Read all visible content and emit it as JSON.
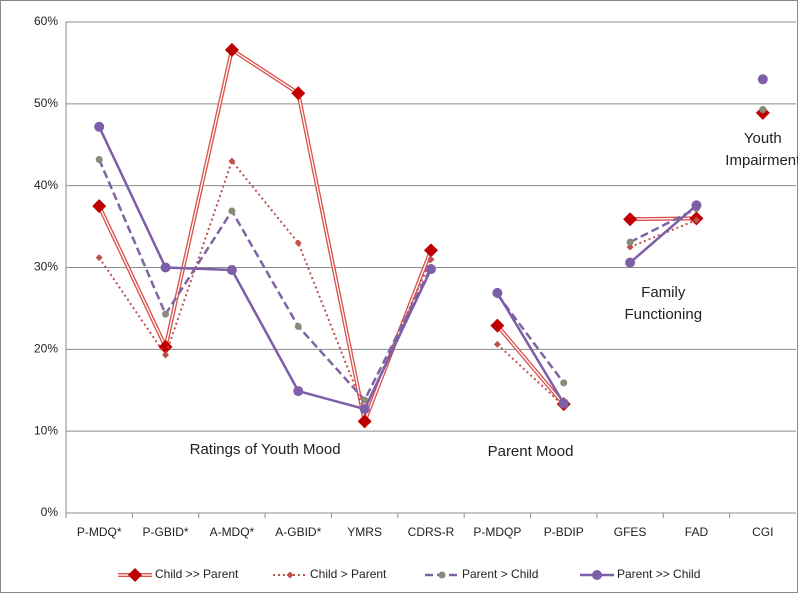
{
  "chart_data": {
    "type": "line",
    "categories": [
      "P-MDQ*",
      "P-GBID*",
      "A-MDQ*",
      "A-GBID*",
      "YMRS",
      "CDRS-R",
      "P-MDQP",
      "P-BDIP",
      "GFES",
      "FAD",
      "CGI"
    ],
    "series": [
      {
        "name": "Child >> Parent",
        "color": "#d9534f",
        "line": "double",
        "marker": "diamond",
        "marker_color": "#c00000",
        "values": [
          37.5,
          20.3,
          56.6,
          51.3,
          11.2,
          32.1,
          22.9,
          13.3,
          35.9,
          36.0,
          48.9
        ]
      },
      {
        "name": "Child > Parent",
        "color": "#c0504d",
        "line": "dotted",
        "marker": "small-diamond",
        "marker_color": "#c0504d",
        "values": [
          31.2,
          19.3,
          43.0,
          33.0,
          12.5,
          31.0,
          20.6,
          13.1,
          32.5,
          35.8,
          49.2
        ]
      },
      {
        "name": "Parent > Child",
        "color": "#8064a2",
        "line": "dashed",
        "marker": "small-circle",
        "marker_color": "#8a8a7a",
        "values": [
          43.2,
          24.3,
          36.9,
          22.8,
          13.8,
          30.0,
          26.7,
          15.9,
          33.1,
          37.2,
          49.3
        ]
      },
      {
        "name": "Parent >> Child",
        "color": "#7d5ea8",
        "line": "solid",
        "marker": "circle",
        "marker_color": "#7d5ea8",
        "values": [
          47.2,
          30.0,
          29.7,
          14.9,
          12.7,
          29.8,
          26.9,
          13.4,
          30.6,
          37.6,
          53.0
        ]
      }
    ],
    "groups": [
      {
        "lines": [
          "Ratings of Youth Mood"
        ],
        "from": 0,
        "to": 5
      },
      {
        "lines": [
          "Parent Mood"
        ],
        "from": 6,
        "to": 7
      },
      {
        "lines": [
          "Family",
          "Functioning"
        ],
        "from": 8,
        "to": 9
      },
      {
        "lines": [
          "Youth",
          "Impairment"
        ],
        "from": 10,
        "to": 10
      }
    ],
    "ylim": [
      0,
      60
    ],
    "yticks": [
      {
        "value": 0,
        "label": "0%"
      },
      {
        "value": 10,
        "label": "10%"
      },
      {
        "value": 20,
        "label": "20%"
      },
      {
        "value": 30,
        "label": "30%"
      },
      {
        "value": 40,
        "label": "40%"
      },
      {
        "value": 50,
        "label": "50%"
      },
      {
        "value": 60,
        "label": "60%"
      }
    ],
    "grid": true,
    "legend": "bottom"
  }
}
